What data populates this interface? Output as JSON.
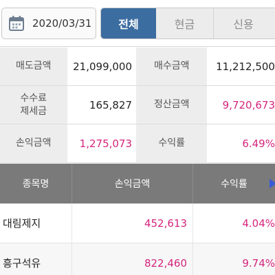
{
  "header": {
    "date": "2020/03/31",
    "tabs": [
      {
        "label": "전체",
        "active": true
      },
      {
        "label": "현금",
        "active": false
      },
      {
        "label": "신용",
        "active": false
      }
    ]
  },
  "summary": {
    "rows": [
      {
        "label1": "매도금액",
        "value1": "21,099,000",
        "label2": "매수금액",
        "value2": "11,212,500"
      },
      {
        "label1": "수수료\n제세금",
        "value1": "165,827",
        "label2": "정산금액",
        "value2": "9,720,673"
      },
      {
        "label1": "손익금액",
        "value1": "1,275,073",
        "label2": "수익률",
        "value2": "6.49%"
      }
    ]
  },
  "table": {
    "headers": [
      "종목명",
      "손익금액",
      "수익률"
    ],
    "rows": [
      {
        "name": "대림제지",
        "profit": "452,613",
        "rate": "4.04%"
      },
      {
        "name": "흥구석유",
        "profit": "822,460",
        "rate": "9.74%"
      }
    ]
  },
  "colors": {
    "accent": "#3c6da0",
    "profit": "#d4247c",
    "header_bg": "#7a7a7a"
  }
}
